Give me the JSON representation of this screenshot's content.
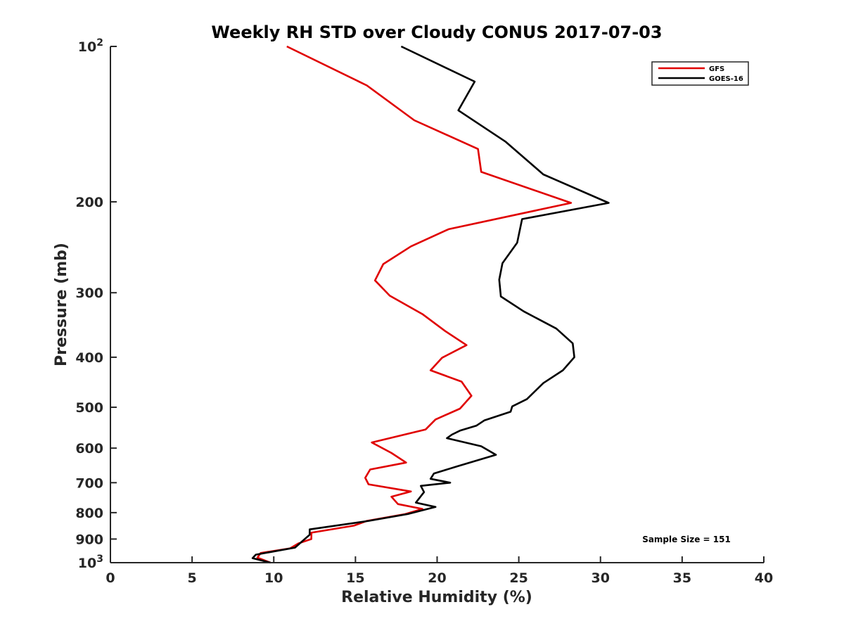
{
  "chart_data": {
    "type": "line",
    "title": "Weekly RH STD over Cloudy CONUS 2017-07-03",
    "xlabel": "Relative Humidity (%)",
    "ylabel": "Pressure (mb)",
    "xlim": [
      0,
      40
    ],
    "ylim": [
      100,
      1000
    ],
    "yscale": "log",
    "y_reversed": true,
    "xticks": [
      0,
      5,
      10,
      15,
      20,
      25,
      30,
      35,
      40
    ],
    "yticks": [
      {
        "value": 100,
        "label": "10",
        "exponent": "2"
      },
      {
        "value": 200,
        "label": "200"
      },
      {
        "value": 300,
        "label": "300"
      },
      {
        "value": 400,
        "label": "400"
      },
      {
        "value": 500,
        "label": "500"
      },
      {
        "value": 600,
        "label": "600"
      },
      {
        "value": 700,
        "label": "700"
      },
      {
        "value": 800,
        "label": "800"
      },
      {
        "value": 900,
        "label": "900"
      },
      {
        "value": 1000,
        "label": "10",
        "exponent": "3"
      }
    ],
    "legend_position": "top-right",
    "annotation": "Sample Size = 151",
    "series": [
      {
        "name": "GFS",
        "color": "#e00000",
        "x": [
          10.8,
          15.7,
          18.6,
          22.5,
          22.7,
          28.2,
          20.7,
          18.4,
          16.7,
          16.2,
          17.1,
          19.1,
          20.5,
          21.8,
          20.3,
          19.6,
          21.5,
          22.1,
          21.4,
          19.9,
          19.3,
          16.0,
          17.2,
          18.1,
          15.9,
          15.6,
          15.8,
          18.4,
          17.2,
          17.6,
          19.1,
          18.0,
          15.7,
          14.9,
          12.3,
          12.3,
          11.5,
          11.0,
          9.2,
          9.0,
          9.8
        ],
        "y": [
          100,
          119,
          139,
          158,
          175,
          201,
          226,
          244,
          264,
          284,
          304,
          330,
          356,
          379,
          401,
          424,
          446,
          475,
          503,
          528,
          552,
          585,
          613,
          640,
          660,
          685,
          705,
          728,
          745,
          770,
          787,
          806,
          830,
          848,
          875,
          900,
          918,
          938,
          958,
          978,
          1000
        ]
      },
      {
        "name": "GOES-16",
        "color": "#000000",
        "x": [
          17.8,
          22.3,
          21.3,
          24.2,
          26.5,
          30.5,
          25.2,
          24.9,
          24.0,
          23.8,
          23.9,
          25.3,
          27.3,
          28.3,
          28.4,
          27.7,
          26.5,
          25.5,
          24.6,
          24.5,
          22.9,
          22.4,
          21.4,
          20.9,
          20.6,
          22.7,
          23.6,
          21.2,
          19.8,
          19.6,
          20.8,
          19.0,
          19.2,
          18.7,
          19.9,
          18.2,
          15.8,
          12.2,
          12.2,
          11.3,
          8.9,
          8.7,
          9.8
        ],
        "y": [
          100,
          117,
          133,
          153,
          177,
          201,
          216,
          240,
          263,
          283,
          305,
          326,
          352,
          376,
          400,
          424,
          449,
          482,
          498,
          510,
          530,
          543,
          555,
          565,
          574,
          595,
          618,
          651,
          672,
          688,
          700,
          710,
          730,
          765,
          780,
          805,
          830,
          862,
          883,
          935,
          965,
          980,
          1000
        ]
      }
    ]
  }
}
